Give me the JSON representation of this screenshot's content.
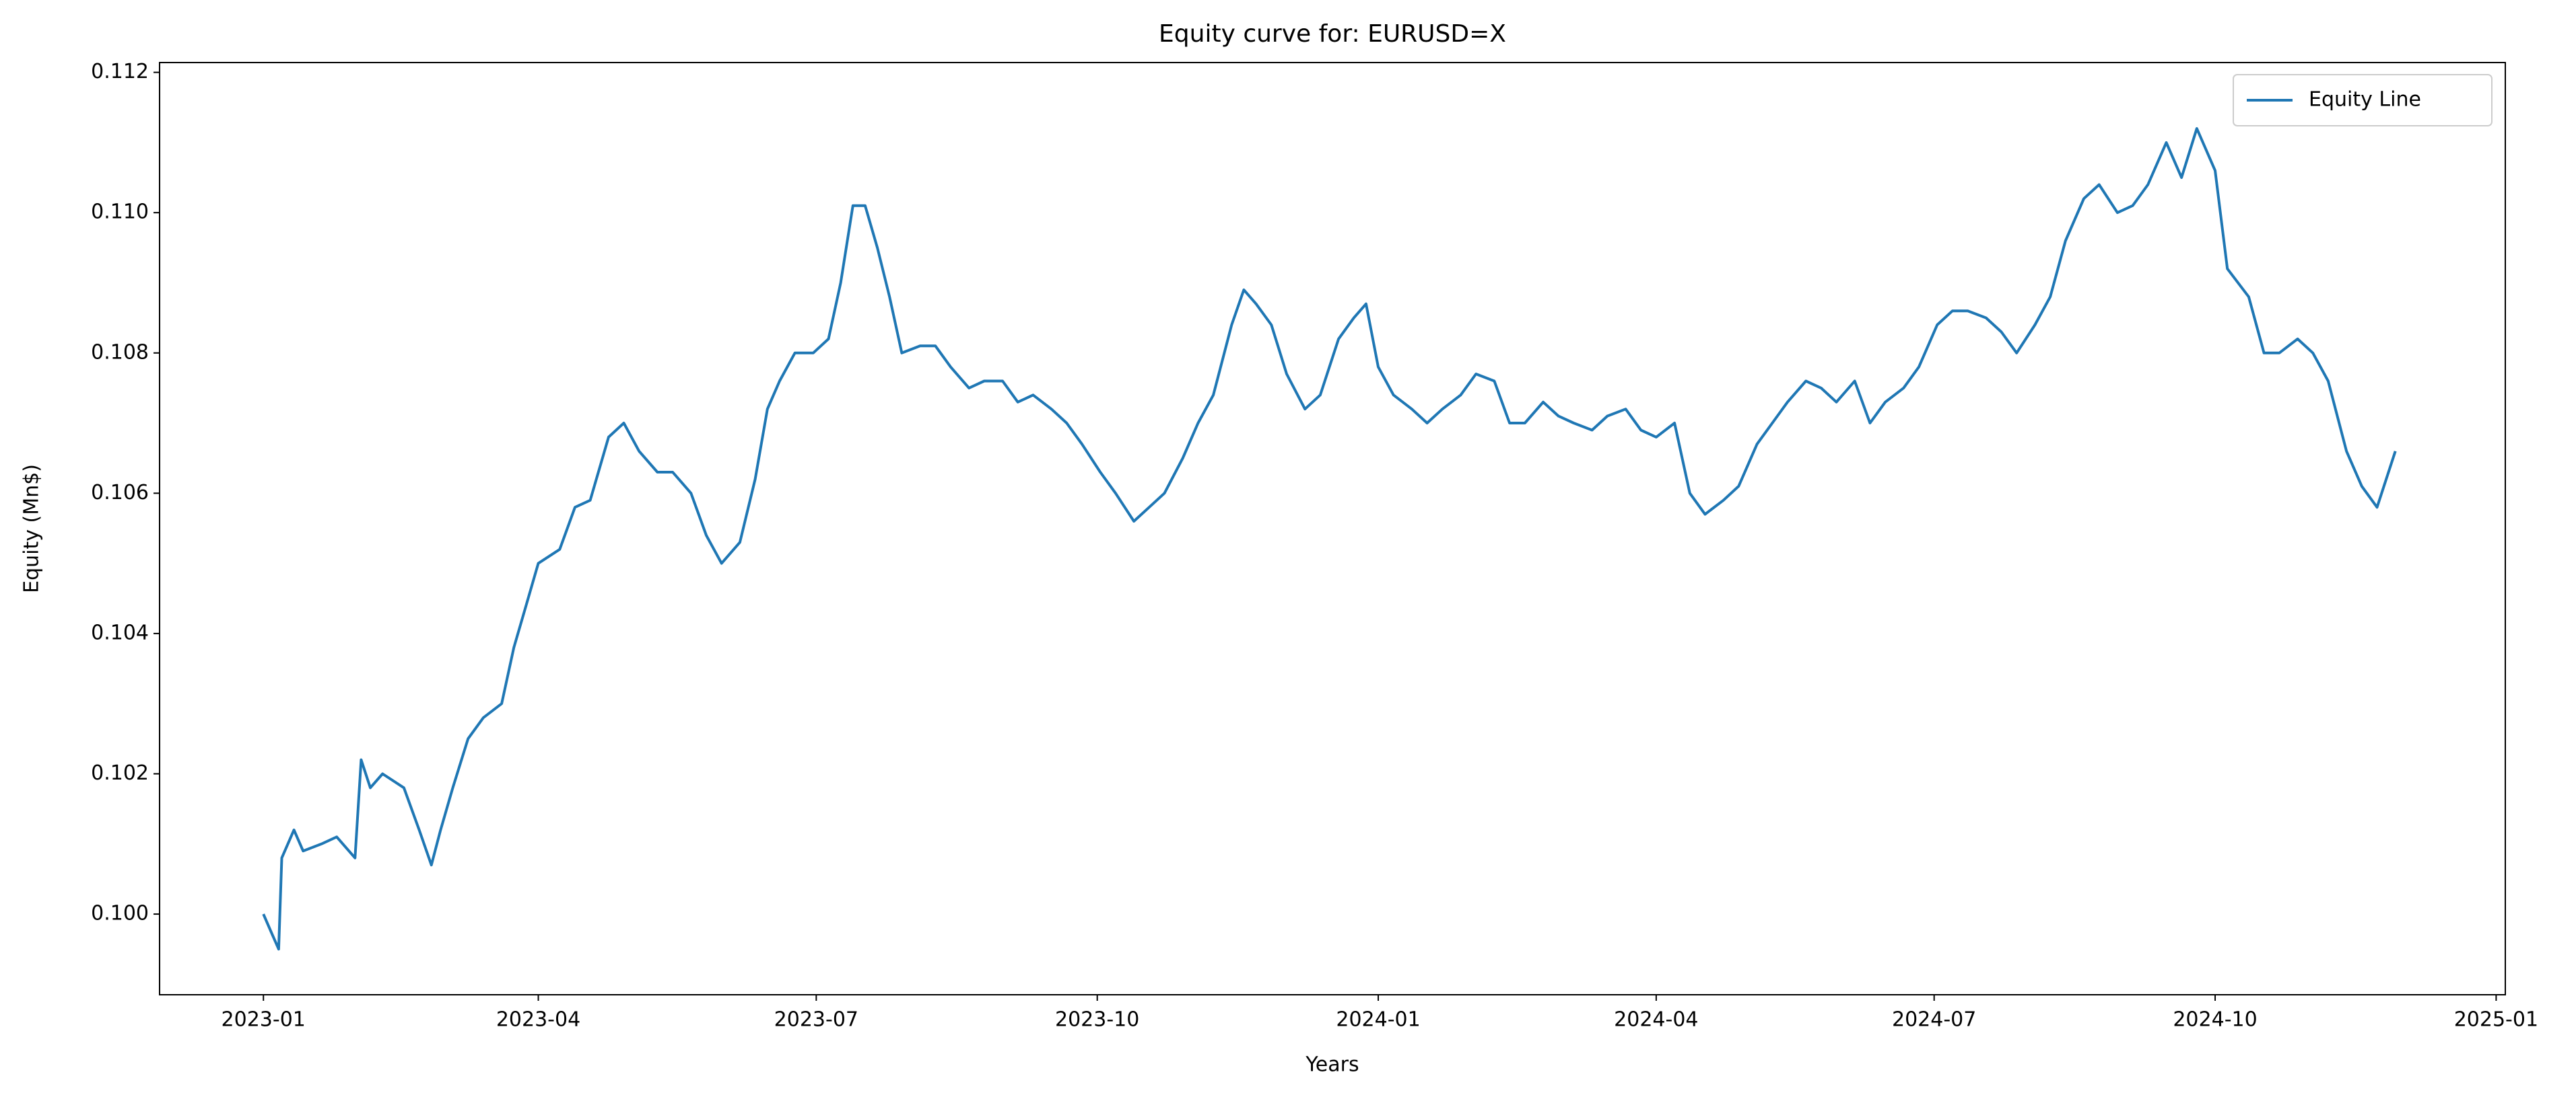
{
  "chart_data": {
    "type": "line",
    "title": "Equity curve for: EURUSD=X",
    "x_label": "Years",
    "y_label": "Equity (Mn$)",
    "legend": "upper right",
    "grid": false,
    "x": [
      0,
      3,
      5,
      6,
      10,
      13,
      19,
      24,
      30,
      32,
      35,
      39,
      46,
      51,
      55,
      58,
      62,
      67,
      72,
      78,
      82,
      86,
      90,
      97,
      102,
      107,
      113,
      118,
      123,
      129,
      134,
      140,
      145,
      150,
      156,
      161,
      165,
      169,
      174,
      180,
      185,
      189,
      193,
      197,
      201,
      205,
      209,
      215,
      220,
      225,
      231,
      236,
      242,
      247,
      252,
      258,
      263,
      268,
      274,
      279,
      285,
      290,
      295,
      301,
      306,
      311,
      317,
      321,
      325,
      330,
      335,
      341,
      346,
      352,
      357,
      361,
      365,
      370,
      376,
      381,
      386,
      392,
      397,
      403,
      408,
      413,
      419,
      424,
      429,
      435,
      440,
      446,
      451,
      456,
      462,
      467,
      472,
      478,
      483,
      489,
      494,
      499,
      505,
      510,
      515,
      521,
      526,
      531,
      537,
      542,
      548,
      553,
      558,
      564,
      569,
      574,
      580,
      585,
      590,
      596,
      601,
      607,
      612,
      617,
      623,
      628,
      633,
      639,
      643,
      650,
      655,
      660,
      666,
      671,
      676,
      682,
      687,
      692,
      695,
      698
    ],
    "series": [
      {
        "name": "Equity Line",
        "color": "#1f77b4",
        "values": [
          0.1,
          0.0997,
          0.0995,
          0.1008,
          0.1012,
          0.1009,
          0.101,
          0.1011,
          0.1008,
          0.1022,
          0.1018,
          0.102,
          0.1018,
          0.1012,
          0.1007,
          0.1012,
          0.1018,
          0.1025,
          0.1028,
          0.103,
          0.1038,
          0.1044,
          0.105,
          0.1052,
          0.1058,
          0.1059,
          0.1068,
          0.107,
          0.1066,
          0.1063,
          0.1063,
          0.106,
          0.1054,
          0.105,
          0.1053,
          0.1062,
          0.1072,
          0.1076,
          0.108,
          0.108,
          0.1082,
          0.109,
          0.1101,
          0.1101,
          0.1095,
          0.1088,
          0.108,
          0.1081,
          0.1081,
          0.1078,
          0.1075,
          0.1076,
          0.1076,
          0.1073,
          0.1074,
          0.1072,
          0.107,
          0.1067,
          0.1063,
          0.106,
          0.1056,
          0.1058,
          0.106,
          0.1065,
          0.107,
          0.1074,
          0.1084,
          0.1089,
          0.1087,
          0.1084,
          0.1077,
          0.1072,
          0.1074,
          0.1082,
          0.1085,
          0.1087,
          0.1078,
          0.1074,
          0.1072,
          0.107,
          0.1072,
          0.1074,
          0.1077,
          0.1076,
          0.107,
          0.107,
          0.1073,
          0.1071,
          0.107,
          0.1069,
          0.1071,
          0.1072,
          0.1069,
          0.1068,
          0.107,
          0.106,
          0.1057,
          0.1059,
          0.1061,
          0.1067,
          0.107,
          0.1073,
          0.1076,
          0.1075,
          0.1073,
          0.1076,
          0.107,
          0.1073,
          0.1075,
          0.1078,
          0.1084,
          0.1086,
          0.1086,
          0.1085,
          0.1083,
          0.108,
          0.1084,
          0.1088,
          0.1096,
          0.1102,
          0.1104,
          0.11,
          0.1101,
          0.1104,
          0.111,
          0.1105,
          0.1112,
          0.1106,
          0.1092,
          0.1088,
          0.108,
          0.108,
          0.1082,
          0.108,
          0.1076,
          0.1066,
          0.1061,
          0.1058,
          0.1062,
          0.1066
        ]
      }
    ],
    "xlim": [
      -34,
      734
    ],
    "xticks": [
      {
        "value": 0,
        "label": "2023-01"
      },
      {
        "value": 90,
        "label": "2023-04"
      },
      {
        "value": 181,
        "label": "2023-07"
      },
      {
        "value": 273,
        "label": "2023-10"
      },
      {
        "value": 365,
        "label": "2024-01"
      },
      {
        "value": 456,
        "label": "2024-04"
      },
      {
        "value": 547,
        "label": "2024-07"
      },
      {
        "value": 639,
        "label": "2024-10"
      },
      {
        "value": 731,
        "label": "2025-01"
      }
    ],
    "ylim": [
      0.09885,
      0.11214
    ],
    "yticks": [
      {
        "value": 0.1,
        "label": "0.100"
      },
      {
        "value": 0.102,
        "label": "0.102"
      },
      {
        "value": 0.104,
        "label": "0.104"
      },
      {
        "value": 0.106,
        "label": "0.106"
      },
      {
        "value": 0.108,
        "label": "0.108"
      },
      {
        "value": 0.11,
        "label": "0.110"
      },
      {
        "value": 0.112,
        "label": "0.112"
      }
    ]
  }
}
